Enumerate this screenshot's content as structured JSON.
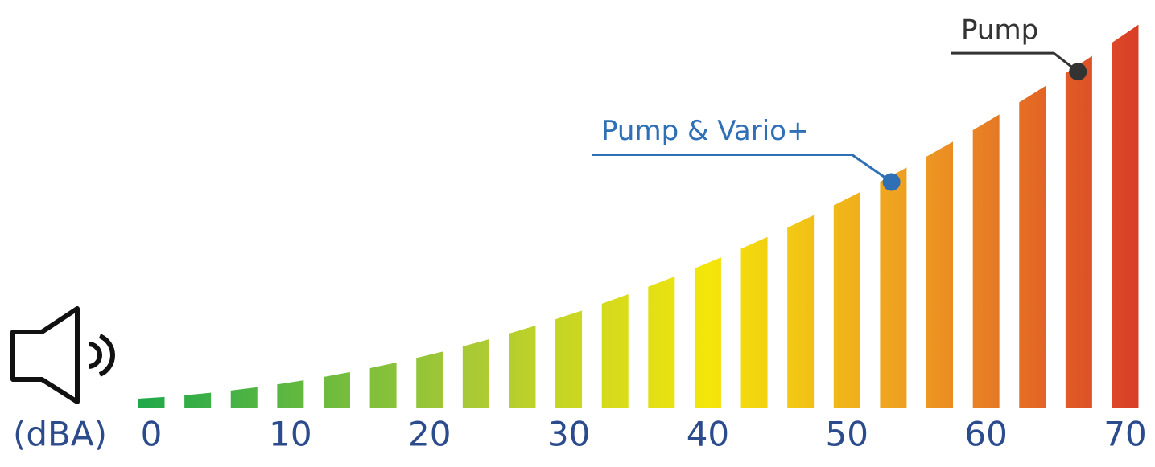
{
  "chart_data": {
    "type": "scale",
    "x_label": "(dBA)",
    "xlim": [
      0,
      70
    ],
    "xticks": [
      0,
      10,
      20,
      30,
      40,
      50,
      60,
      70
    ],
    "annotations": [
      {
        "label": "Pump & Vario+",
        "value": 53.2,
        "color": "#2e6fb5"
      },
      {
        "label": "Pump",
        "value": 66.6,
        "color": "#333333"
      }
    ]
  }
}
